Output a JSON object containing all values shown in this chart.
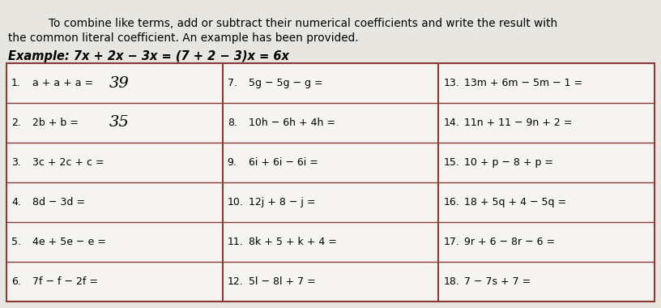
{
  "title_line1": "To combine like terms, add or subtract their numerical coefficients and write the result with",
  "title_line2": "the common literal coefficient. An example has been provided.",
  "example_text": "Example: 7x + 2x − 3x = (7 + 2 − 3)x = 6x",
  "bg_color": "#e8e6e1",
  "table_bg": "#f5f4f0",
  "border_color": "#8b3a3a",
  "row_labels_col1": [
    "1.",
    "2.",
    "3.",
    "4.",
    "5.",
    "6."
  ],
  "row_labels_col2": [
    "7.",
    "8.",
    "9.",
    "10.",
    "11.",
    "12."
  ],
  "row_labels_col3": [
    "13.",
    "14.",
    "15.",
    "16.",
    "17.",
    "18."
  ],
  "expressions_col1": [
    "a + a + a =",
    "2b + b =",
    "3c + 2c + c =",
    "8d − 3d =",
    "4e + 5e − e =",
    "7f − f − 2f ="
  ],
  "expressions_col2": [
    "5g − 5g − g =",
    "10h − 6h + 4h =",
    "6i + 6i − 6i =",
    "12j + 8 − j =",
    "8k + 5 + k + 4 =",
    "5l − 8l + 7 ="
  ],
  "expressions_col3": [
    "13m + 6m − 5m − 1 =",
    "11n + 11 − 9n + 2 =",
    "10 + p − 8 + p =",
    "18 + 5q + 4 − 5q =",
    "9r + 6 − 8r − 6 =",
    "7 − 7s + 7 ="
  ],
  "handwritten_col1": [
    "39",
    "35",
    "",
    "",
    "",
    ""
  ],
  "title_fontsize": 9.8,
  "example_fontsize": 10.5,
  "cell_fontsize": 9.0,
  "handwrite_fontsize": 14
}
